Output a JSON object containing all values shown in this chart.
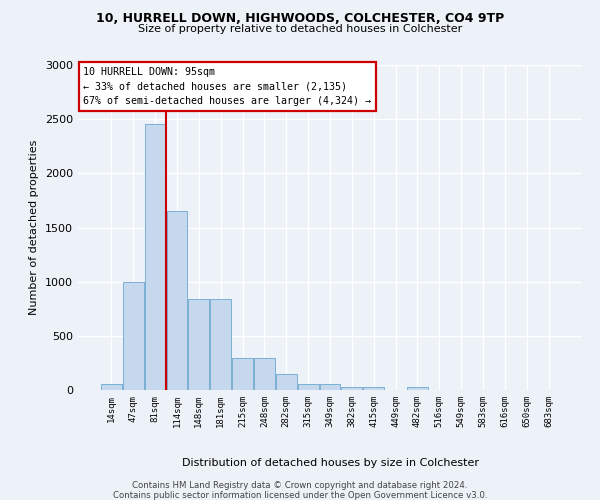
{
  "title1": "10, HURRELL DOWN, HIGHWOODS, COLCHESTER, CO4 9TP",
  "title2": "Size of property relative to detached houses in Colchester",
  "xlabel": "Distribution of detached houses by size in Colchester",
  "ylabel": "Number of detached properties",
  "bar_labels": [
    "14sqm",
    "47sqm",
    "81sqm",
    "114sqm",
    "148sqm",
    "181sqm",
    "215sqm",
    "248sqm",
    "282sqm",
    "315sqm",
    "349sqm",
    "382sqm",
    "415sqm",
    "449sqm",
    "482sqm",
    "516sqm",
    "549sqm",
    "583sqm",
    "616sqm",
    "650sqm",
    "683sqm"
  ],
  "bar_values": [
    55,
    1000,
    2460,
    1650,
    840,
    840,
    300,
    300,
    150,
    55,
    55,
    30,
    30,
    0,
    30,
    0,
    0,
    0,
    0,
    0,
    0
  ],
  "bar_color": "#c5d8ee",
  "bar_edge_color": "#7aafd4",
  "red_line_x": 2.5,
  "red_line_color": "#cc0000",
  "annotation_text": "10 HURRELL DOWN: 95sqm\n← 33% of detached houses are smaller (2,135)\n67% of semi-detached houses are larger (4,324) →",
  "annotation_box_facecolor": "#ffffff",
  "annotation_box_edgecolor": "#cc0000",
  "ylim": [
    0,
    3000
  ],
  "yticks": [
    0,
    500,
    1000,
    1500,
    2000,
    2500,
    3000
  ],
  "footer1": "Contains HM Land Registry data © Crown copyright and database right 2024.",
  "footer2": "Contains public sector information licensed under the Open Government Licence v3.0.",
  "background_color": "#edf2f9",
  "grid_color": "#ffffff"
}
